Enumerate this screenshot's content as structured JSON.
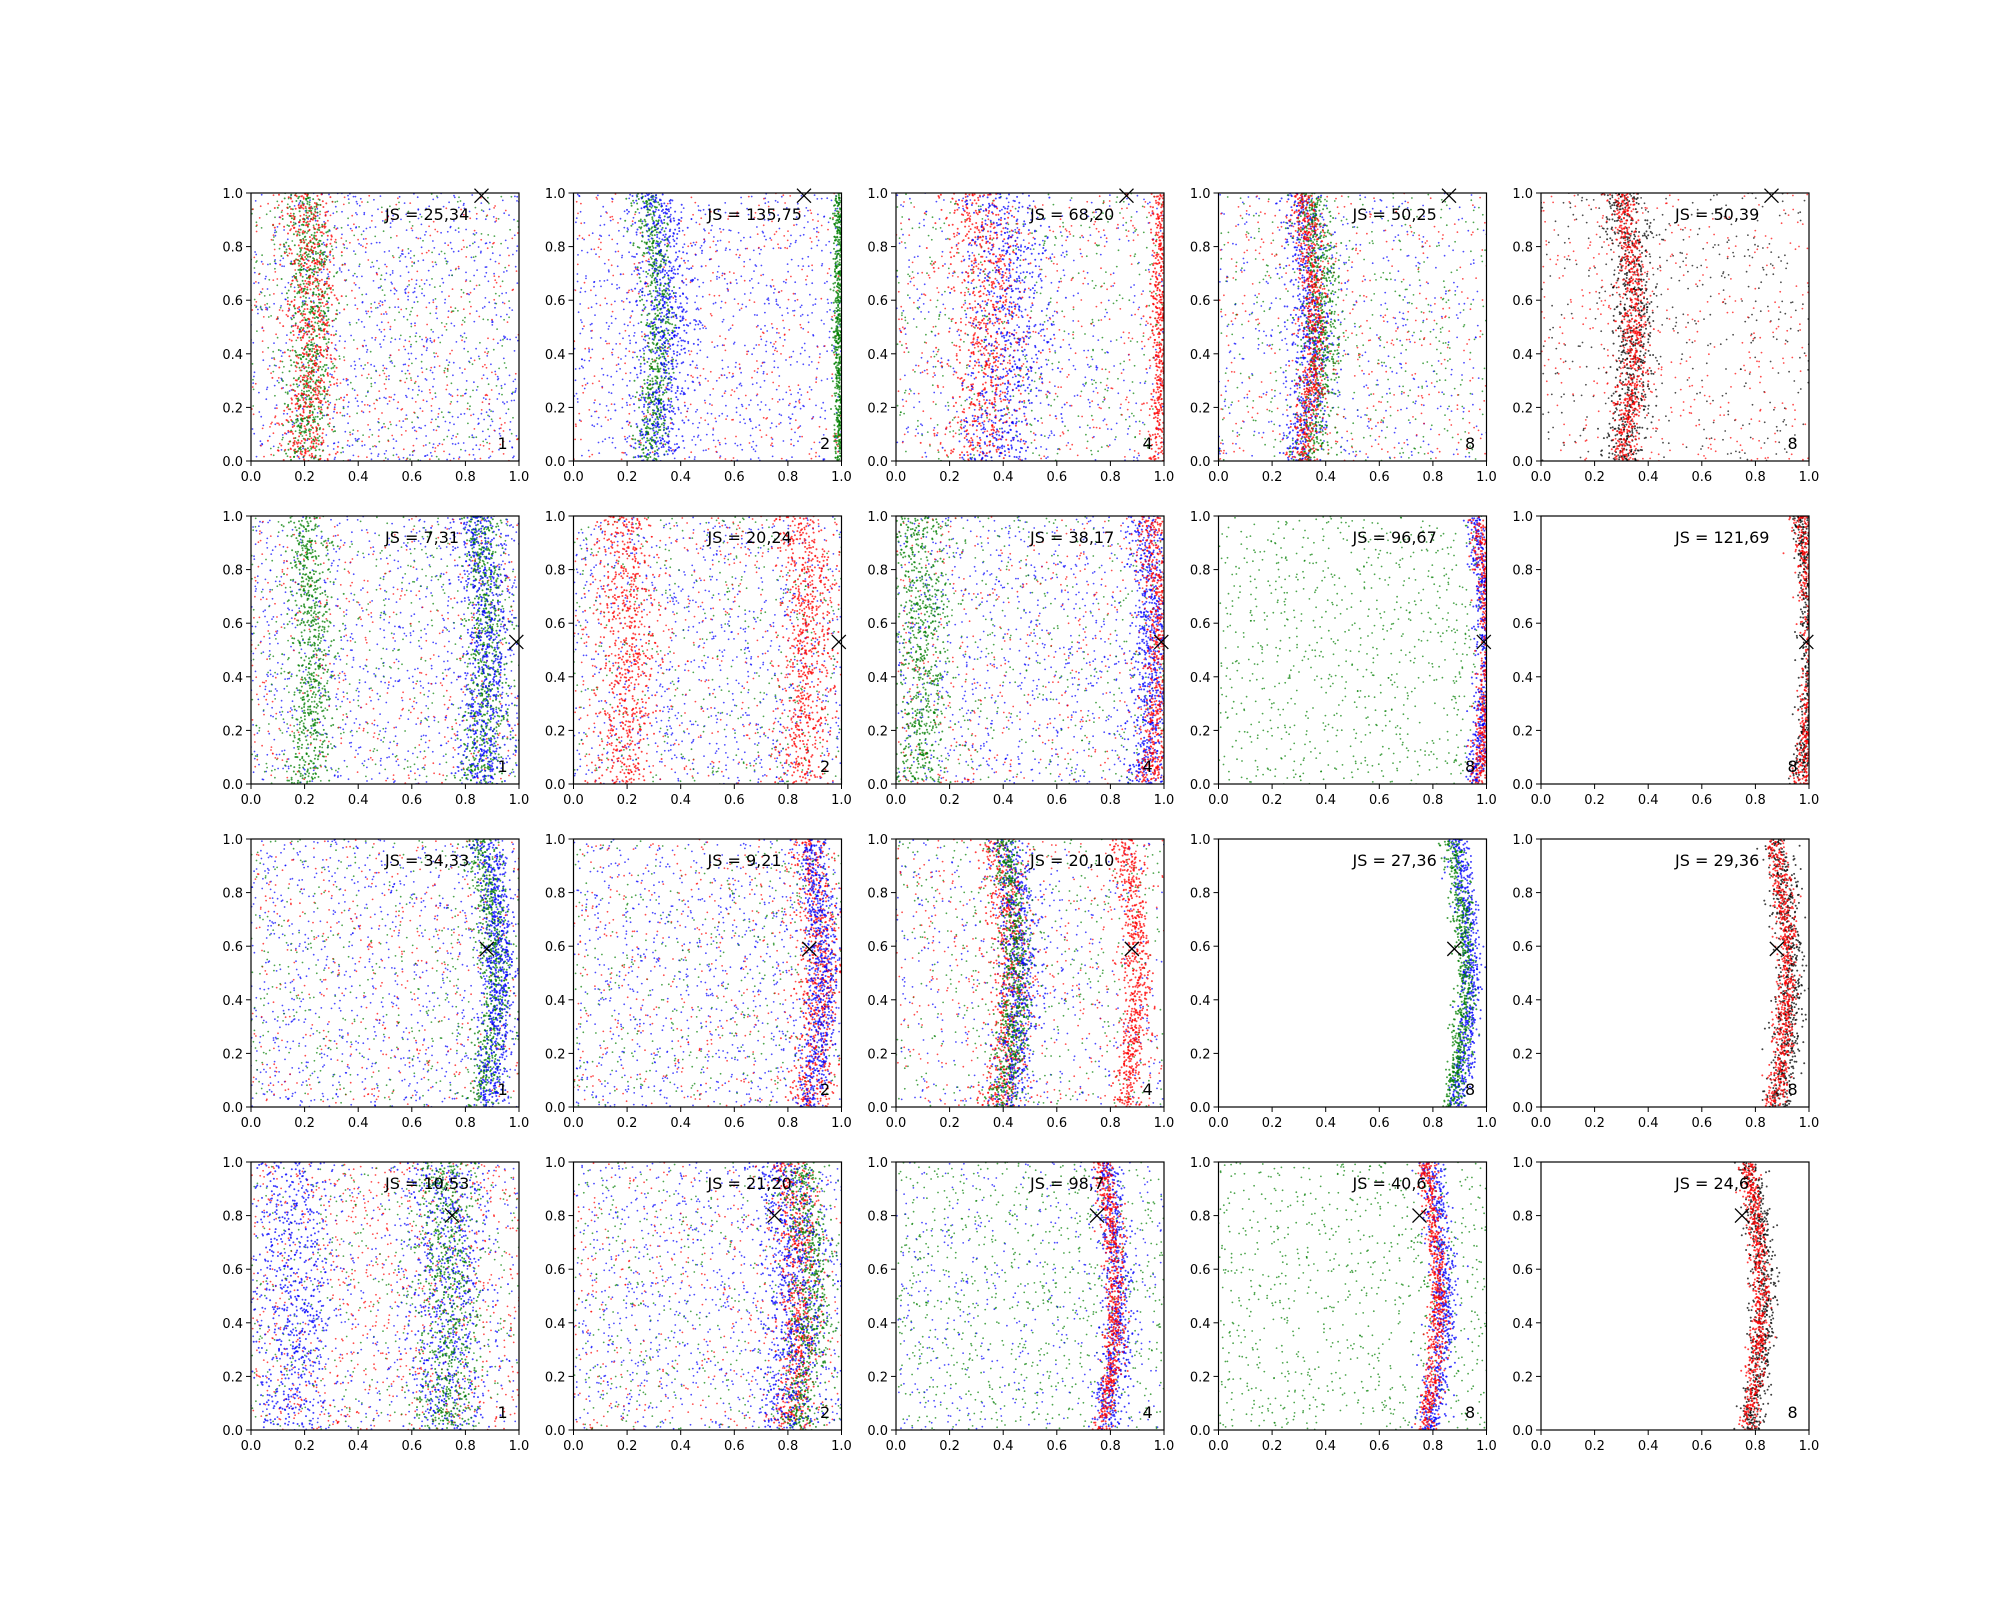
{
  "chart_data": {
    "type": "scatter",
    "grid": false,
    "xlim": [
      0,
      1
    ],
    "ylim": [
      0,
      1
    ],
    "x_ticks": [
      "0.0",
      "0.2",
      "0.4",
      "0.6",
      "0.8",
      "1.0"
    ],
    "y_ticks": [
      "0.0",
      "0.2",
      "0.4",
      "0.6",
      "0.8",
      "1.0"
    ],
    "colors": {
      "blue": "#0000ff",
      "green": "#007f00",
      "red": "#ff0000",
      "black": "#000000"
    },
    "panels": [
      {
        "row": 0,
        "col": 0,
        "js": "JS = 25,34",
        "label": "1",
        "marker": [
          0.86,
          0.99
        ],
        "bands": [
          {
            "c": "green",
            "x": 0.2,
            "w": 0.04,
            "a": 0.03
          },
          {
            "c": "red",
            "x": 0.2,
            "w": 0.05,
            "a": 0.03
          }
        ],
        "spread": [
          "blue",
          "blue",
          "green",
          "red"
        ]
      },
      {
        "row": 0,
        "col": 1,
        "js": "JS = 135,75",
        "label": "2",
        "marker": [
          0.86,
          0.99
        ],
        "bands": [
          {
            "c": "green",
            "x": 0.27,
            "w": 0.03,
            "a": 0.05
          },
          {
            "c": "blue",
            "x": 0.3,
            "w": 0.05,
            "a": 0.05
          },
          {
            "c": "green",
            "x": 0.99,
            "w": 0.01,
            "a": 0.0
          }
        ],
        "spread": [
          "blue",
          "blue",
          "red"
        ]
      },
      {
        "row": 0,
        "col": 2,
        "js": "JS = 68,20",
        "label": "4",
        "marker": [
          0.86,
          0.99
        ],
        "bands": [
          {
            "c": "red",
            "x": 0.3,
            "w": 0.07,
            "a": 0.05
          },
          {
            "c": "blue",
            "x": 0.38,
            "w": 0.08,
            "a": 0.05
          },
          {
            "c": "red",
            "x": 0.99,
            "w": 0.02,
            "a": 0.0
          }
        ],
        "spread": [
          "blue",
          "green",
          "red"
        ]
      },
      {
        "row": 0,
        "col": 3,
        "js": "JS = 50,25",
        "label": "8",
        "marker": [
          0.86,
          0.99
        ],
        "bands": [
          {
            "c": "blue",
            "x": 0.3,
            "w": 0.04,
            "a": 0.05
          },
          {
            "c": "green",
            "x": 0.34,
            "w": 0.035,
            "a": 0.05
          },
          {
            "c": "red",
            "x": 0.31,
            "w": 0.025,
            "a": 0.05
          }
        ],
        "spread": [
          "green",
          "blue",
          "red"
        ]
      },
      {
        "row": 0,
        "col": 4,
        "js": "JS = 50,39",
        "label": "8",
        "marker": [
          0.86,
          0.99
        ],
        "bands": [
          {
            "c": "black",
            "x": 0.3,
            "w": 0.04,
            "a": 0.05
          },
          {
            "c": "red",
            "x": 0.3,
            "w": 0.025,
            "a": 0.05
          }
        ],
        "spread": [
          "black",
          "red"
        ]
      },
      {
        "row": 1,
        "col": 0,
        "js": "JS = 7,31",
        "label": "1",
        "marker": [
          0.99,
          0.53
        ],
        "bands": [
          {
            "c": "green",
            "x": 0.2,
            "w": 0.04,
            "a": 0.03
          },
          {
            "c": "green",
            "x": 0.85,
            "w": 0.04,
            "a": 0.03
          },
          {
            "c": "blue",
            "x": 0.85,
            "w": 0.05,
            "a": 0.03
          }
        ],
        "spread": [
          "blue",
          "blue",
          "green",
          "red"
        ]
      },
      {
        "row": 1,
        "col": 1,
        "js": "JS = 20,24",
        "label": "2",
        "marker": [
          0.99,
          0.53
        ],
        "bands": [
          {
            "c": "red",
            "x": 0.18,
            "w": 0.06,
            "a": 0.03
          },
          {
            "c": "red",
            "x": 0.85,
            "w": 0.05,
            "a": 0.03
          }
        ],
        "spread": [
          "blue",
          "blue",
          "green",
          "red"
        ]
      },
      {
        "row": 1,
        "col": 2,
        "js": "JS = 38,17",
        "label": "4",
        "marker": [
          0.99,
          0.53
        ],
        "bands": [
          {
            "c": "green",
            "x": 0.08,
            "w": 0.05,
            "a": 0.02
          },
          {
            "c": "blue",
            "x": 0.92,
            "w": 0.04,
            "a": 0.04
          },
          {
            "c": "red",
            "x": 0.95,
            "w": 0.03,
            "a": 0.04
          }
        ],
        "spread": [
          "blue",
          "blue",
          "green",
          "red"
        ]
      },
      {
        "row": 1,
        "col": 3,
        "js": "JS = 96,67",
        "label": "8",
        "marker": [
          0.99,
          0.53
        ],
        "bands": [
          {
            "c": "blue",
            "x": 0.96,
            "w": 0.02,
            "a": 0.04
          },
          {
            "c": "red",
            "x": 0.97,
            "w": 0.02,
            "a": 0.04
          }
        ],
        "spread": [
          "green",
          "green"
        ]
      },
      {
        "row": 1,
        "col": 4,
        "js": "JS = 121,69",
        "label": "8",
        "marker": [
          0.99,
          0.53
        ],
        "bands": [
          {
            "c": "black",
            "x": 0.97,
            "w": 0.02,
            "a": 0.04
          },
          {
            "c": "red",
            "x": 0.97,
            "w": 0.02,
            "a": 0.04
          }
        ],
        "spread": []
      },
      {
        "row": 2,
        "col": 0,
        "js": "JS = 34,33",
        "label": "1",
        "marker": [
          0.88,
          0.59
        ],
        "bands": [
          {
            "c": "green",
            "x": 0.86,
            "w": 0.03,
            "a": 0.05
          },
          {
            "c": "blue",
            "x": 0.88,
            "w": 0.03,
            "a": 0.05
          }
        ],
        "spread": [
          "blue",
          "blue",
          "red",
          "green"
        ]
      },
      {
        "row": 2,
        "col": 1,
        "js": "JS = 9,21",
        "label": "2",
        "marker": [
          0.88,
          0.59
        ],
        "bands": [
          {
            "c": "red",
            "x": 0.87,
            "w": 0.04,
            "a": 0.05
          },
          {
            "c": "blue",
            "x": 0.88,
            "w": 0.03,
            "a": 0.05
          }
        ],
        "spread": [
          "blue",
          "blue",
          "green",
          "red"
        ]
      },
      {
        "row": 2,
        "col": 2,
        "js": "JS = 20,10",
        "label": "4",
        "marker": [
          0.88,
          0.59
        ],
        "bands": [
          {
            "c": "red",
            "x": 0.38,
            "w": 0.04,
            "a": 0.05
          },
          {
            "c": "blue",
            "x": 0.42,
            "w": 0.04,
            "a": 0.05
          },
          {
            "c": "green",
            "x": 0.4,
            "w": 0.03,
            "a": 0.05
          },
          {
            "c": "red",
            "x": 0.85,
            "w": 0.025,
            "a": 0.05
          }
        ],
        "spread": [
          "blue",
          "green",
          "red"
        ]
      },
      {
        "row": 2,
        "col": 3,
        "js": "JS = 27,36",
        "label": "8",
        "marker": [
          0.88,
          0.59
        ],
        "bands": [
          {
            "c": "blue",
            "x": 0.89,
            "w": 0.02,
            "a": 0.05
          },
          {
            "c": "green",
            "x": 0.87,
            "w": 0.02,
            "a": 0.05
          }
        ],
        "spread": []
      },
      {
        "row": 2,
        "col": 4,
        "js": "JS = 29,36",
        "label": "8",
        "marker": [
          0.88,
          0.59
        ],
        "bands": [
          {
            "c": "black",
            "x": 0.88,
            "w": 0.03,
            "a": 0.05
          },
          {
            "c": "red",
            "x": 0.87,
            "w": 0.02,
            "a": 0.05
          }
        ],
        "spread": []
      },
      {
        "row": 3,
        "col": 0,
        "js": "JS = 10,53",
        "label": "1",
        "marker": [
          0.75,
          0.8
        ],
        "bands": [
          {
            "c": "blue",
            "x": 0.15,
            "w": 0.08,
            "a": 0.02
          },
          {
            "c": "blue",
            "x": 0.72,
            "w": 0.08,
            "a": 0.02
          },
          {
            "c": "green",
            "x": 0.72,
            "w": 0.06,
            "a": 0.02
          }
        ],
        "spread": [
          "red",
          "red",
          "green",
          "blue"
        ]
      },
      {
        "row": 3,
        "col": 1,
        "js": "JS = 21,20",
        "label": "2",
        "marker": [
          0.75,
          0.8
        ],
        "bands": [
          {
            "c": "red",
            "x": 0.8,
            "w": 0.04,
            "a": 0.05
          },
          {
            "c": "green",
            "x": 0.84,
            "w": 0.04,
            "a": 0.05
          },
          {
            "c": "blue",
            "x": 0.78,
            "w": 0.06,
            "a": 0.05
          }
        ],
        "spread": [
          "blue",
          "blue",
          "red",
          "green"
        ]
      },
      {
        "row": 3,
        "col": 2,
        "js": "JS = 98,7",
        "label": "4",
        "marker": [
          0.75,
          0.8
        ],
        "bands": [
          {
            "c": "blue",
            "x": 0.78,
            "w": 0.03,
            "a": 0.05
          },
          {
            "c": "red",
            "x": 0.77,
            "w": 0.02,
            "a": 0.05
          }
        ],
        "spread": [
          "green",
          "green",
          "blue"
        ]
      },
      {
        "row": 3,
        "col": 3,
        "js": "JS = 40,6",
        "label": "8",
        "marker": [
          0.75,
          0.8
        ],
        "bands": [
          {
            "c": "blue",
            "x": 0.79,
            "w": 0.025,
            "a": 0.05
          },
          {
            "c": "red",
            "x": 0.77,
            "w": 0.018,
            "a": 0.05
          }
        ],
        "spread": [
          "green",
          "green"
        ]
      },
      {
        "row": 3,
        "col": 4,
        "js": "JS = 24,6",
        "label": "8",
        "marker": [
          0.75,
          0.8
        ],
        "bands": [
          {
            "c": "black",
            "x": 0.78,
            "w": 0.025,
            "a": 0.05
          },
          {
            "c": "red",
            "x": 0.77,
            "w": 0.018,
            "a": 0.05
          }
        ],
        "spread": []
      }
    ]
  }
}
